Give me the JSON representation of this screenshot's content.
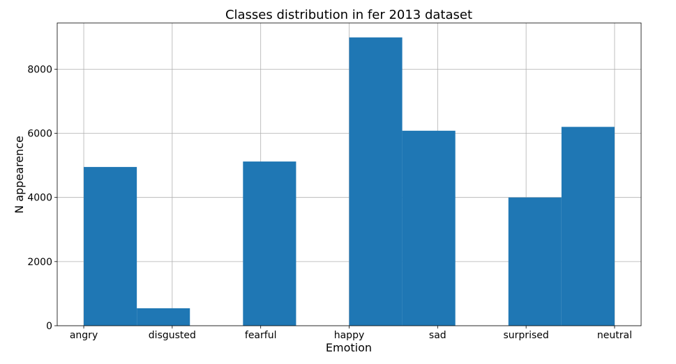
{
  "colors": {
    "bar": "#1f77b4",
    "grid": "#b0b0b0",
    "background": "#ffffff",
    "axes": "#000000"
  },
  "chart_data": {
    "type": "bar",
    "title": "Classes distribution in fer 2013 dataset",
    "xlabel": "Emotion",
    "ylabel": "N appearence",
    "grid": true,
    "categories": [
      "angry",
      "disgusted",
      "fearful",
      "happy",
      "sad",
      "surprised",
      "neutral"
    ],
    "bins": [
      {
        "x_start": 0.0,
        "x_end": 0.6,
        "value": 4950
      },
      {
        "x_start": 0.6,
        "x_end": 1.2,
        "value": 545
      },
      {
        "x_start": 1.8,
        "x_end": 2.4,
        "value": 5120
      },
      {
        "x_start": 3.0,
        "x_end": 3.6,
        "value": 8990
      },
      {
        "x_start": 3.6,
        "x_end": 4.2,
        "value": 6080
      },
      {
        "x_start": 4.8,
        "x_end": 5.4,
        "value": 4000
      },
      {
        "x_start": 5.4,
        "x_end": 6.0,
        "value": 6200
      }
    ],
    "xlim": [
      -0.3,
      6.3
    ],
    "ylim": [
      0,
      9440
    ],
    "yticks": [
      0,
      2000,
      4000,
      6000,
      8000
    ]
  }
}
